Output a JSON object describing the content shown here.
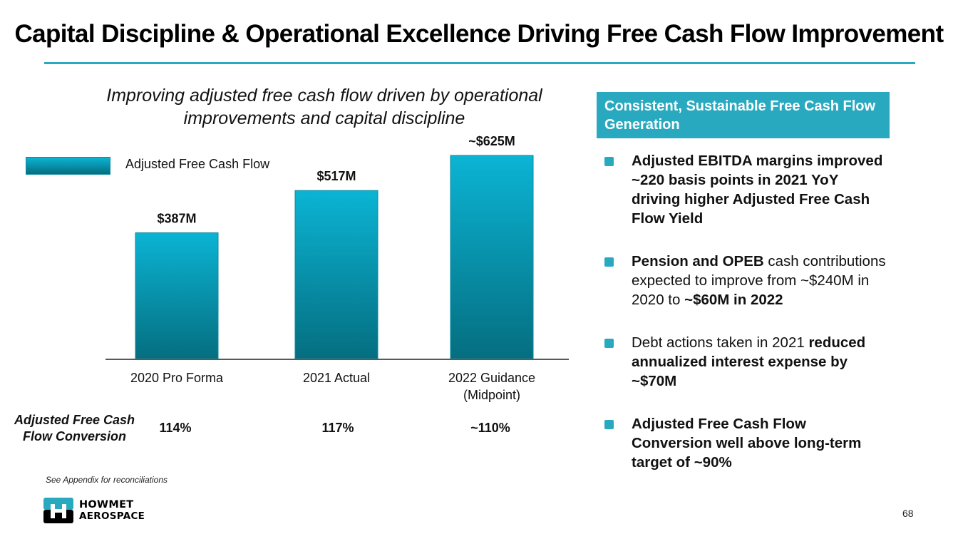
{
  "title": "Capital Discipline & Operational Excellence Driving Free Cash Flow Improvement",
  "subtitle": "Improving adjusted free cash flow driven by operational improvements and capital discipline",
  "colors": {
    "accent": "#29a9bf",
    "bar_top": "#0bb4d4",
    "bar_bottom": "#056e80",
    "axis": "#595959"
  },
  "chart_data": {
    "type": "bar",
    "title": "",
    "xlabel": "",
    "ylabel": "",
    "legend": {
      "entries": [
        "Adjusted Free Cash Flow"
      ],
      "placement": "top-left"
    },
    "categories": [
      "2020 Pro Forma",
      "2021 Actual",
      "2022 Guidance\n(Midpoint)"
    ],
    "category_lines": [
      [
        "2020 Pro Forma"
      ],
      [
        "2021 Actual"
      ],
      [
        "2022 Guidance",
        "(Midpoint)"
      ]
    ],
    "series": [
      {
        "name": "Adjusted Free Cash Flow",
        "values": [
          387,
          517,
          625
        ],
        "unit": "$M"
      }
    ],
    "data_labels": [
      "$387M",
      "$517M",
      "~$625M"
    ],
    "ylim": [
      0,
      625
    ],
    "grid": false
  },
  "conversion": {
    "title_line1": "Adjusted Free Cash",
    "title_line2": "Flow Conversion",
    "values": [
      "114%",
      "117%",
      "~110%"
    ]
  },
  "footnote": "See Appendix for reconciliations",
  "logo": {
    "line1": "HOWMET",
    "line2": "AEROSPACE",
    "icon": "howmet-h-logo-icon"
  },
  "panel": {
    "header": "Consistent, Sustainable Free Cash Flow Generation",
    "bullets": [
      {
        "parts": [
          {
            "text": "Adjusted EBITDA margins improved ~220 basis points in 2021 YoY driving higher Adjusted Free Cash Flow Yield",
            "bold": true
          }
        ]
      },
      {
        "parts": [
          {
            "text": "Pension and OPEB",
            "bold": true
          },
          {
            "text": " cash contributions expected to improve from ~$240M in 2020 to ",
            "bold": false
          },
          {
            "text": "~$60M in 2022",
            "bold": true
          }
        ]
      },
      {
        "parts": [
          {
            "text": "Debt actions taken in 2021 ",
            "bold": false
          },
          {
            "text": "reduced annualized interest expense by ~$70M",
            "bold": true
          }
        ]
      },
      {
        "parts": [
          {
            "text": "Adjusted Free Cash Flow Conversion well above long-term target of ~90%",
            "bold": true
          }
        ]
      }
    ]
  },
  "page_number": "68"
}
